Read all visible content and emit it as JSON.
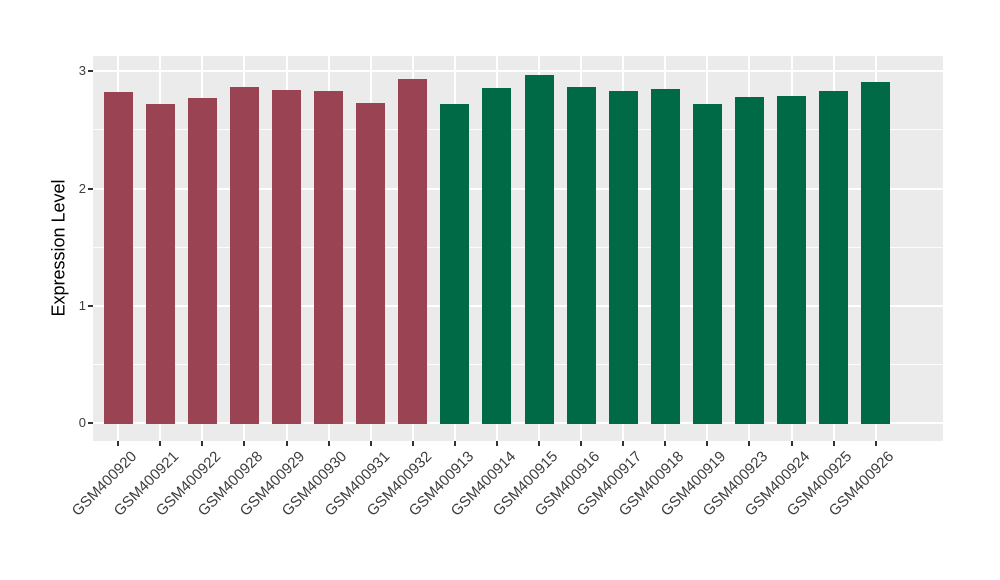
{
  "figure": {
    "background": "#FFFFFF",
    "panel_background": "#EBEBEB",
    "grid_color": "#FFFFFF",
    "axis_text_color": "#3d3d3d",
    "axis_tick_color": "#333333"
  },
  "chart_data": {
    "type": "bar",
    "title": "",
    "xlabel": "",
    "ylabel": "Expression Level",
    "categories": [
      "GSM400920",
      "GSM400921",
      "GSM400922",
      "GSM400928",
      "GSM400929",
      "GSM400930",
      "GSM400931",
      "GSM400932",
      "GSM400913",
      "GSM400914",
      "GSM400915",
      "GSM400916",
      "GSM400917",
      "GSM400918",
      "GSM400919",
      "GSM400923",
      "GSM400924",
      "GSM400925",
      "GSM400926"
    ],
    "values": [
      2.82,
      2.72,
      2.77,
      2.87,
      2.84,
      2.83,
      2.73,
      2.93,
      2.72,
      2.86,
      2.97,
      2.87,
      2.83,
      2.85,
      2.72,
      2.78,
      2.79,
      2.83,
      2.91
    ],
    "groups": [
      "group1",
      "group1",
      "group1",
      "group1",
      "group1",
      "group1",
      "group1",
      "group1",
      "group2",
      "group2",
      "group2",
      "group2",
      "group2",
      "group2",
      "group2",
      "group2",
      "group2",
      "group2",
      "group2"
    ],
    "group_colors": {
      "group1": "#9A4352",
      "group2": "#006946"
    },
    "yticks": [
      0,
      1,
      2,
      3
    ],
    "yticks_minor": [
      0.5,
      1.5,
      2.5
    ],
    "ylim": [
      -0.15,
      3.13
    ],
    "grid": "on",
    "legend": "none",
    "bar_width_fraction": 0.7
  }
}
